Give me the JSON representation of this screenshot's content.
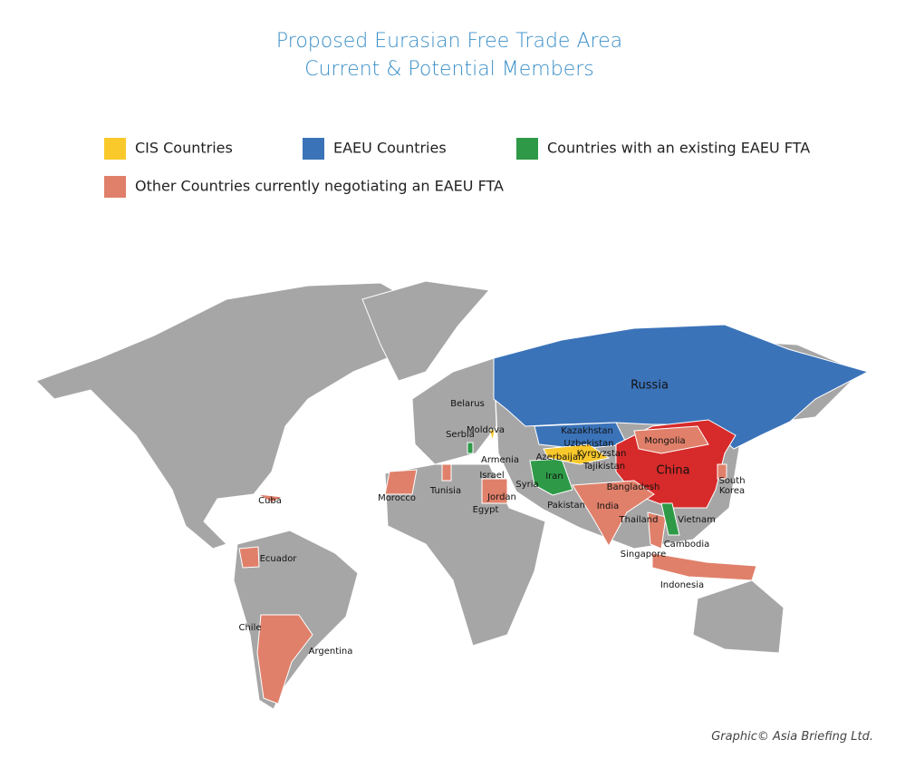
{
  "header": {
    "title": [
      "Proposed Eurasian Free Trade Area",
      "Current & Potential Members"
    ]
  },
  "legend": [
    "CIS Countries",
    "EAEU Countries",
    "Countries with an existing EAEU FTA",
    "Other Countries currently negotiating an EAEU FTA"
  ],
  "labels": {
    "russia": "Russia",
    "belarus": "Belarus",
    "kazakhstan": "Kazakhstan",
    "moldova": "Moldova",
    "uzbekistan": "Uzbekistan",
    "serbia": "Serbia",
    "kyrgyzstan": "Kyrgyzstan",
    "azerbaijan": "Azerbaijan",
    "armenia": "Armenia",
    "tajikistan": "Tajikistan",
    "mongolia": "Mongolia",
    "china": "China",
    "israel": "Israel",
    "syria": "Syria",
    "iran": "Iran",
    "morocco": "Morocco",
    "tunisia": "Tunisia",
    "jordan": "Jordan",
    "bangladesh": "Bangladesh",
    "south_korea": [
      "South",
      "Korea"
    ],
    "cuba": "Cuba",
    "egypt": "Egypt",
    "pakistan": "Pakistan",
    "india": "India",
    "thailand": "Thailand",
    "vietnam": "Vietnam",
    "cambodia": "Cambodia",
    "ecuador": "Ecuador",
    "singapore": "Singapore",
    "indonesia": "Indonesia",
    "chile": "Chile",
    "argentina": "Argentina"
  },
  "credit": "Graphic© Asia Briefing Ltd."
}
